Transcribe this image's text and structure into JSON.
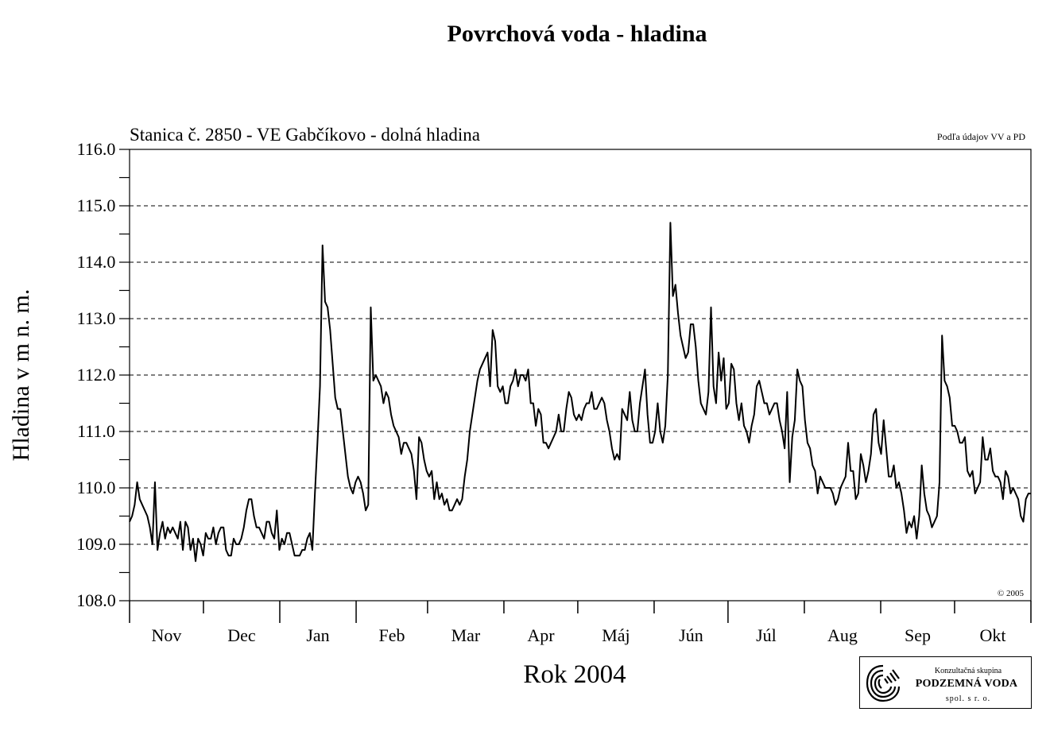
{
  "chart_data": {
    "type": "line",
    "title": "Povrchová voda - hladina",
    "subtitle": "Stanica č. 2850 - VE Gabčíkovo - dolná hladina",
    "source_note": "Podľa údajov VV a PD",
    "copyright": "© 2005",
    "xlabel": "Rok 2004",
    "ylabel": "Hladina v m n. m.",
    "ylim": [
      108.0,
      116.0
    ],
    "yticks": [
      "108.0",
      "109.0",
      "110.0",
      "111.0",
      "112.0",
      "113.0",
      "114.0",
      "115.0",
      "116.0"
    ],
    "months": [
      "Nov",
      "Dec",
      "Jan",
      "Feb",
      "Mar",
      "Apr",
      "Máj",
      "Jún",
      "Júl",
      "Aug",
      "Sep",
      "Okt"
    ],
    "grid": "horizontal-dashed",
    "series": [
      {
        "x_unit": "day",
        "y": [
          109.4,
          109.5,
          109.7,
          110.1,
          109.8,
          109.7,
          109.6,
          109.5,
          109.3,
          109.0,
          110.1,
          108.9,
          109.2,
          109.4,
          109.1,
          109.3,
          109.2,
          109.3,
          109.2,
          109.1,
          109.4,
          108.9,
          109.4,
          109.3,
          108.9,
          109.1,
          108.7,
          109.1,
          109.0,
          108.8,
          109.2,
          109.1,
          109.1,
          109.3,
          109.0,
          109.2,
          109.3,
          109.3,
          108.9,
          108.8,
          108.8,
          109.1,
          109.0,
          109.0,
          109.1,
          109.3,
          109.6,
          109.8,
          109.8,
          109.5,
          109.3,
          109.3,
          109.2,
          109.1,
          109.4,
          109.4,
          109.2,
          109.1,
          109.6,
          108.9,
          109.1,
          109.0,
          109.2,
          109.2,
          109.0,
          108.8,
          108.8,
          108.8,
          108.9,
          108.9,
          109.1,
          109.2,
          108.9,
          109.9,
          110.8,
          111.8,
          114.3,
          113.3,
          113.2,
          112.8,
          112.2,
          111.6,
          111.4,
          111.4,
          111.0,
          110.6,
          110.2,
          110.0,
          109.9,
          110.1,
          110.2,
          110.1,
          109.9,
          109.6,
          109.7,
          113.2,
          111.9,
          112.0,
          111.9,
          111.8,
          111.5,
          111.7,
          111.6,
          111.3,
          111.1,
          111.0,
          110.9,
          110.6,
          110.8,
          110.8,
          110.7,
          110.6,
          110.3,
          109.8,
          110.9,
          110.8,
          110.5,
          110.3,
          110.2,
          110.3,
          109.8,
          110.1,
          109.8,
          109.9,
          109.7,
          109.8,
          109.6,
          109.6,
          109.7,
          109.8,
          109.7,
          109.8,
          110.2,
          110.5,
          111.0,
          111.3,
          111.6,
          111.9,
          112.1,
          112.2,
          112.3,
          112.4,
          111.8,
          112.8,
          112.6,
          111.8,
          111.7,
          111.8,
          111.5,
          111.5,
          111.8,
          111.9,
          112.1,
          111.8,
          112.0,
          112.0,
          111.9,
          112.1,
          111.5,
          111.5,
          111.1,
          111.4,
          111.3,
          110.8,
          110.8,
          110.7,
          110.8,
          110.9,
          111.0,
          111.3,
          111.0,
          111.0,
          111.4,
          111.7,
          111.6,
          111.3,
          111.2,
          111.3,
          111.2,
          111.4,
          111.5,
          111.5,
          111.7,
          111.4,
          111.4,
          111.5,
          111.6,
          111.5,
          111.2,
          111.0,
          110.7,
          110.5,
          110.6,
          110.5,
          111.4,
          111.3,
          111.2,
          111.7,
          111.2,
          111.0,
          111.0,
          111.5,
          111.8,
          112.1,
          111.3,
          110.8,
          110.8,
          111.0,
          111.5,
          111.0,
          110.8,
          111.1,
          112.0,
          114.7,
          113.4,
          113.6,
          113.1,
          112.7,
          112.5,
          112.3,
          112.4,
          112.9,
          112.9,
          112.5,
          111.9,
          111.5,
          111.4,
          111.3,
          111.7,
          113.2,
          111.8,
          111.5,
          112.4,
          111.9,
          112.3,
          111.4,
          111.5,
          112.2,
          112.1,
          111.5,
          111.2,
          111.5,
          111.1,
          111.0,
          110.8,
          111.1,
          111.3,
          111.8,
          111.9,
          111.7,
          111.5,
          111.5,
          111.3,
          111.4,
          111.5,
          111.5,
          111.2,
          111.0,
          110.7,
          111.7,
          110.1,
          110.9,
          111.2,
          112.1,
          111.9,
          111.8,
          111.2,
          110.8,
          110.7,
          110.4,
          110.3,
          109.9,
          110.2,
          110.1,
          110.0,
          110.0,
          110.0,
          109.9,
          109.7,
          109.8,
          110.0,
          110.1,
          110.2,
          110.8,
          110.3,
          110.3,
          109.8,
          109.9,
          110.6,
          110.4,
          110.1,
          110.3,
          110.6,
          111.3,
          111.4,
          110.8,
          110.6,
          111.2,
          110.7,
          110.2,
          110.2,
          110.4,
          110.0,
          110.1,
          109.9,
          109.6,
          109.2,
          109.4,
          109.3,
          109.5,
          109.1,
          109.5,
          110.4,
          109.9,
          109.6,
          109.5,
          109.3,
          109.4,
          109.5,
          110.1,
          112.7,
          111.9,
          111.8,
          111.6,
          111.1,
          111.1,
          111.0,
          110.8,
          110.8,
          110.9,
          110.3,
          110.2,
          110.3,
          109.9,
          110.0,
          110.1,
          110.9,
          110.5,
          110.5,
          110.7,
          110.3,
          110.2,
          110.2,
          110.1,
          109.8,
          110.3,
          110.2,
          109.9,
          110.0,
          109.9,
          109.8,
          109.5,
          109.4,
          109.8,
          109.9,
          109.9
        ]
      }
    ]
  },
  "logo": {
    "line1": "Konzultačná skupina",
    "line2": "PODZEMNÁ VODA",
    "line3": "spol. s r. o.",
    "icon": "podzemna-voda-logo-icon"
  }
}
